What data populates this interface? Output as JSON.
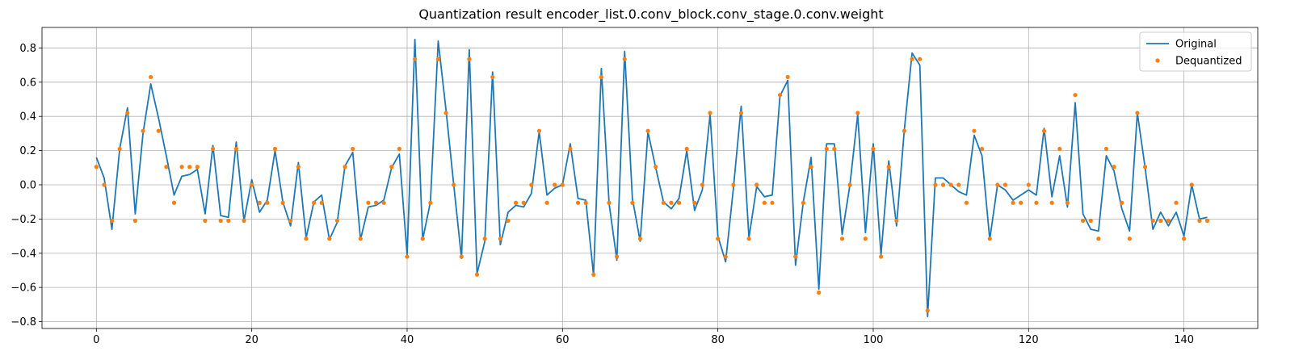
{
  "chart_data": {
    "type": "line",
    "title": "Quantization result encoder_list.0.conv_block.conv_stage.0.conv.weight",
    "xlabel": "",
    "ylabel": "",
    "xlim": [
      -7,
      149.5
    ],
    "ylim": [
      -0.84,
      0.92
    ],
    "xticks": [
      0,
      20,
      40,
      60,
      80,
      100,
      120,
      140
    ],
    "yticks": [
      -0.8,
      -0.6,
      -0.4,
      -0.2,
      0.0,
      0.2,
      0.4,
      0.6,
      0.8
    ],
    "ytick_labels": [
      "−0.8",
      "−0.6",
      "−0.4",
      "−0.2",
      "0.0",
      "0.2",
      "0.4",
      "0.6",
      "0.8"
    ],
    "grid": true,
    "legend_position": "top-right",
    "series": [
      {
        "name": "Original",
        "style": "line",
        "color": "#1f77b4",
        "values": [
          0.16,
          0.04,
          -0.26,
          0.21,
          0.45,
          -0.17,
          0.3,
          0.59,
          0.39,
          0.17,
          -0.06,
          0.05,
          0.06,
          0.09,
          -0.17,
          0.23,
          -0.18,
          -0.19,
          0.25,
          -0.21,
          0.03,
          -0.16,
          -0.09,
          0.2,
          -0.1,
          -0.24,
          0.13,
          -0.31,
          -0.1,
          -0.06,
          -0.32,
          -0.22,
          0.11,
          0.19,
          -0.32,
          -0.13,
          -0.12,
          -0.09,
          0.1,
          0.18,
          -0.41,
          0.85,
          -0.32,
          -0.1,
          0.84,
          0.44,
          0.0,
          -0.43,
          0.79,
          -0.52,
          -0.33,
          0.66,
          -0.35,
          -0.16,
          -0.12,
          -0.13,
          -0.05,
          0.31,
          -0.06,
          -0.02,
          0.0,
          0.24,
          -0.08,
          -0.09,
          -0.53,
          0.68,
          -0.11,
          -0.44,
          0.78,
          -0.08,
          -0.33,
          0.31,
          0.1,
          -0.1,
          -0.14,
          -0.08,
          0.2,
          -0.15,
          -0.03,
          0.41,
          -0.3,
          -0.45,
          -0.02,
          0.46,
          -0.31,
          -0.01,
          -0.07,
          -0.06,
          0.52,
          0.61,
          -0.47,
          -0.1,
          0.16,
          -0.61,
          0.24,
          0.24,
          -0.29,
          0.0,
          0.41,
          -0.28,
          0.24,
          -0.41,
          0.14,
          -0.24,
          0.32,
          0.77,
          0.7,
          -0.77,
          0.04,
          0.04,
          0.0,
          -0.04,
          -0.06,
          0.29,
          0.17,
          -0.32,
          0.0,
          -0.03,
          -0.09,
          -0.06,
          -0.03,
          -0.06,
          0.33,
          -0.07,
          0.17,
          -0.13,
          0.48,
          -0.17,
          -0.26,
          -0.27,
          0.17,
          0.08,
          -0.14,
          -0.27,
          0.42,
          0.1,
          -0.26,
          -0.16,
          -0.24,
          -0.16,
          -0.3,
          0.0,
          -0.2,
          -0.19
        ]
      },
      {
        "name": "Dequantized",
        "style": "points",
        "color": "#ff7f0e",
        "values": [
          0.105,
          0.0,
          -0.21,
          0.21,
          0.42,
          -0.21,
          0.315,
          0.63,
          0.315,
          0.105,
          -0.105,
          0.105,
          0.105,
          0.105,
          -0.21,
          0.21,
          -0.21,
          -0.21,
          0.21,
          -0.21,
          0.0,
          -0.105,
          -0.105,
          0.21,
          -0.105,
          -0.21,
          0.105,
          -0.315,
          -0.105,
          -0.105,
          -0.315,
          -0.21,
          0.105,
          0.21,
          -0.315,
          -0.105,
          -0.105,
          -0.105,
          0.105,
          0.21,
          -0.42,
          0.735,
          -0.315,
          -0.105,
          0.735,
          0.42,
          0.0,
          -0.42,
          0.735,
          -0.525,
          -0.315,
          0.63,
          -0.315,
          -0.21,
          -0.105,
          -0.105,
          0.0,
          0.315,
          -0.105,
          0.0,
          0.0,
          0.21,
          -0.105,
          -0.105,
          -0.525,
          0.63,
          -0.105,
          -0.42,
          0.735,
          -0.105,
          -0.315,
          0.315,
          0.105,
          -0.105,
          -0.105,
          -0.105,
          0.21,
          -0.105,
          0.0,
          0.42,
          -0.315,
          -0.42,
          0.0,
          0.42,
          -0.315,
          0.0,
          -0.105,
          -0.105,
          0.525,
          0.63,
          -0.42,
          -0.105,
          0.105,
          -0.63,
          0.21,
          0.21,
          -0.315,
          0.0,
          0.42,
          -0.315,
          0.21,
          -0.42,
          0.105,
          -0.21,
          0.315,
          0.735,
          0.735,
          -0.735,
          0.0,
          0.0,
          0.0,
          0.0,
          -0.105,
          0.315,
          0.21,
          -0.315,
          0.0,
          0.0,
          -0.105,
          -0.105,
          0.0,
          -0.105,
          0.315,
          -0.105,
          0.21,
          -0.105,
          0.525,
          -0.21,
          -0.21,
          -0.315,
          0.21,
          0.105,
          -0.105,
          -0.315,
          0.42,
          0.105,
          -0.21,
          -0.21,
          -0.21,
          -0.105,
          -0.315,
          0.0,
          -0.21,
          -0.21
        ]
      }
    ]
  }
}
